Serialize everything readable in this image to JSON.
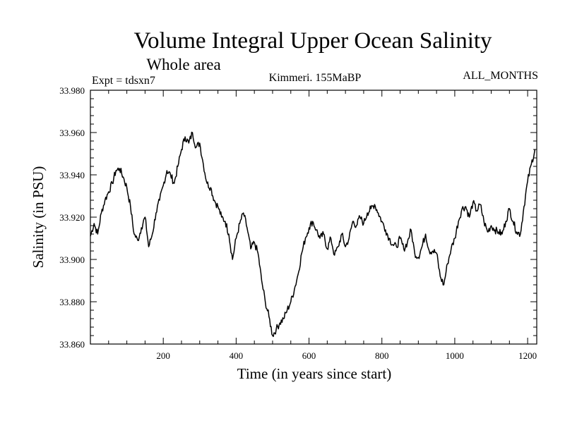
{
  "chart_data": {
    "type": "line",
    "title": "Volume Integral Upper Ocean Salinity",
    "subtitle": "Whole area",
    "annotations": {
      "left": "Expt = tdsxn7",
      "center": "Kimmeri. 155MaBP",
      "right": "ALL_MONTHS"
    },
    "xlabel": "Time (in years since start)",
    "ylabel": "Salinity (in PSU)",
    "xlim": [
      0,
      1225
    ],
    "ylim": [
      33.86,
      33.98
    ],
    "x_ticks": [
      200,
      400,
      600,
      800,
      1000,
      1200
    ],
    "x_tick_labels": [
      "200",
      "400",
      "600",
      "800",
      "1000",
      "1200"
    ],
    "y_ticks": [
      33.86,
      33.88,
      33.9,
      33.92,
      33.94,
      33.96,
      33.98
    ],
    "y_tick_labels": [
      "33.860",
      "33.880",
      "33.900",
      "33.920",
      "33.940",
      "33.960",
      "33.980"
    ],
    "grid": false,
    "series": [
      {
        "name": "Salinity",
        "color": "#000000",
        "x": [
          0,
          10,
          20,
          30,
          40,
          50,
          60,
          70,
          80,
          90,
          100,
          110,
          120,
          130,
          140,
          150,
          160,
          170,
          180,
          190,
          200,
          210,
          220,
          230,
          240,
          250,
          260,
          270,
          280,
          290,
          300,
          310,
          320,
          330,
          340,
          350,
          360,
          370,
          380,
          390,
          400,
          410,
          420,
          430,
          440,
          450,
          460,
          470,
          480,
          490,
          500,
          510,
          520,
          530,
          540,
          550,
          560,
          570,
          580,
          590,
          600,
          610,
          620,
          630,
          640,
          650,
          660,
          670,
          680,
          690,
          700,
          710,
          720,
          730,
          740,
          750,
          760,
          770,
          780,
          790,
          800,
          810,
          820,
          830,
          840,
          850,
          860,
          870,
          880,
          890,
          900,
          910,
          920,
          930,
          940,
          950,
          960,
          970,
          980,
          990,
          1000,
          1010,
          1020,
          1030,
          1040,
          1050,
          1060,
          1070,
          1080,
          1090,
          1100,
          1110,
          1120,
          1130,
          1140,
          1150,
          1160,
          1170,
          1180,
          1190,
          1200,
          1210,
          1220
        ],
        "values": [
          33.911,
          33.917,
          33.912,
          33.922,
          33.928,
          33.932,
          33.936,
          33.942,
          33.943,
          33.939,
          33.934,
          33.925,
          33.912,
          33.909,
          33.915,
          33.92,
          33.906,
          33.912,
          33.922,
          33.928,
          33.935,
          33.942,
          33.94,
          33.936,
          33.944,
          33.952,
          33.958,
          33.955,
          33.96,
          33.953,
          33.955,
          33.945,
          33.936,
          33.934,
          33.928,
          33.925,
          33.92,
          33.918,
          33.912,
          33.9,
          33.91,
          33.917,
          33.922,
          33.915,
          33.905,
          33.908,
          33.903,
          33.89,
          33.88,
          33.873,
          33.864,
          33.867,
          33.87,
          33.872,
          33.876,
          33.88,
          33.886,
          33.893,
          33.903,
          33.91,
          33.915,
          33.918,
          33.914,
          33.91,
          33.912,
          33.905,
          33.91,
          33.902,
          33.906,
          33.912,
          33.906,
          33.91,
          33.918,
          33.916,
          33.92,
          33.917,
          33.922,
          33.924,
          33.926,
          33.922,
          33.918,
          33.914,
          33.91,
          33.907,
          33.906,
          33.91,
          33.905,
          33.908,
          33.914,
          33.903,
          33.901,
          33.906,
          33.912,
          33.904,
          33.904,
          33.903,
          33.892,
          33.888,
          33.898,
          33.905,
          33.91,
          33.918,
          33.924,
          33.925,
          33.92,
          33.927,
          33.923,
          33.926,
          33.918,
          33.913,
          33.916,
          33.914,
          33.913,
          33.912,
          33.918,
          33.924,
          33.918,
          33.913,
          33.912,
          33.925,
          33.937,
          33.945,
          33.952
        ]
      }
    ]
  }
}
